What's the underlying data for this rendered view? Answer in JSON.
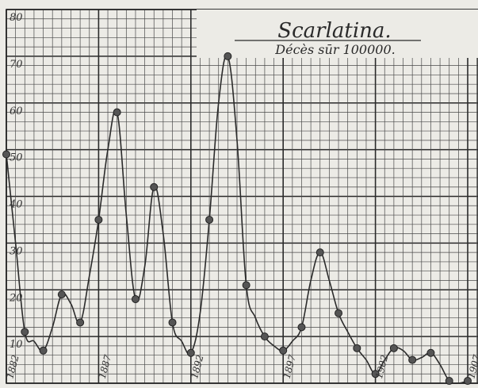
{
  "chart_data": {
    "type": "line",
    "title": "Scarlatina.",
    "subtitle": "Décès sūr 100000.",
    "ylim": [
      0,
      80
    ],
    "yticks": [
      10,
      20,
      30,
      40,
      50,
      60,
      70,
      80
    ],
    "xtick_labels": [
      "1882",
      "1887",
      "1892",
      "1897",
      "1902",
      "1907"
    ],
    "grid": true,
    "series": [
      {
        "x": [
          1882,
          1882.5,
          1883,
          1883.5,
          1884,
          1884.5,
          1885,
          1885.5,
          1886,
          1886.5,
          1887,
          1887.5,
          1888,
          1888.5,
          1889,
          1889.5,
          1890,
          1890.5,
          1891,
          1891.5,
          1892,
          1892.5,
          1893,
          1893.5,
          1894,
          1894.5,
          1895,
          1895.5,
          1896,
          1896.5,
          1897,
          1897.5,
          1898,
          1898.5,
          1899,
          1899.5,
          1900,
          1900.5,
          1901,
          1901.5,
          1902,
          1902.5,
          1903,
          1903.5,
          1904,
          1904.5,
          1905,
          1905.5,
          1906,
          1906.5,
          1907
        ],
        "values": [
          49,
          30,
          11,
          9,
          7,
          12,
          19,
          17,
          13,
          23,
          35,
          50,
          58,
          36,
          18,
          25,
          42,
          32,
          13,
          9,
          6.5,
          15,
          35,
          60,
          70,
          52,
          21,
          14,
          10,
          8,
          7,
          9,
          12,
          22,
          28,
          22,
          15,
          11,
          7.5,
          5,
          2,
          5,
          7.5,
          7,
          5,
          5.5,
          6.5,
          4,
          0.5,
          0,
          0.5
        ]
      }
    ]
  }
}
